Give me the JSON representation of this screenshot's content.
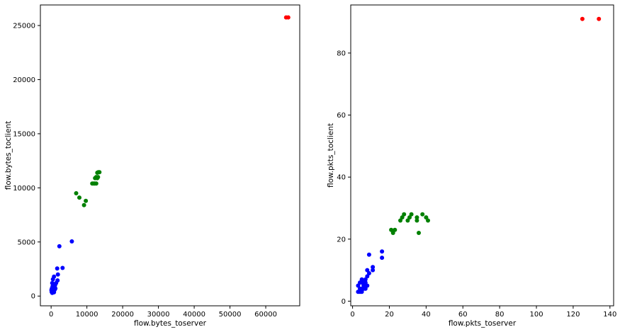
{
  "chart_data": [
    {
      "type": "scatter",
      "xlabel": "flow.bytes_toserver",
      "ylabel": "flow.bytes_toclient",
      "xlim": [
        -3000,
        69500
      ],
      "ylim": [
        -900,
        26900
      ],
      "xticks": [
        0,
        10000,
        20000,
        30000,
        40000,
        50000,
        60000
      ],
      "yticks": [
        0,
        5000,
        10000,
        15000,
        20000,
        25000
      ],
      "xtick_labels": [
        "0",
        "10000",
        "20000",
        "30000",
        "40000",
        "50000",
        "60000"
      ],
      "ytick_labels": [
        "0",
        "5000",
        "10000",
        "15000",
        "20000",
        "25000"
      ],
      "grid": false,
      "series": [
        {
          "color": "#0000ff",
          "points": [
            [
              2300,
              4600
            ],
            [
              5800,
              5050
            ],
            [
              3200,
              2600
            ],
            [
              1700,
              2550
            ],
            [
              1900,
              2000
            ],
            [
              1800,
              1450
            ],
            [
              1400,
              1200
            ],
            [
              800,
              1800
            ],
            [
              500,
              1550
            ],
            [
              1100,
              1000
            ],
            [
              300,
              1200
            ],
            [
              700,
              1100
            ],
            [
              400,
              900
            ],
            [
              900,
              800
            ],
            [
              200,
              700
            ],
            [
              600,
              650
            ],
            [
              1000,
              600
            ],
            [
              100,
              550
            ],
            [
              400,
              500
            ],
            [
              700,
              450
            ],
            [
              150,
              400
            ],
            [
              500,
              380
            ],
            [
              300,
              300
            ],
            [
              800,
              350
            ],
            [
              1200,
              700
            ]
          ]
        },
        {
          "color": "#008000",
          "points": [
            [
              7000,
              9500
            ],
            [
              7900,
              9100
            ],
            [
              9200,
              8400
            ],
            [
              9700,
              8800
            ],
            [
              11500,
              10400
            ],
            [
              11900,
              10400
            ],
            [
              12200,
              10400
            ],
            [
              12600,
              10400
            ],
            [
              12300,
              10900
            ],
            [
              12600,
              11000
            ],
            [
              12900,
              10900
            ],
            [
              13100,
              11000
            ],
            [
              12900,
              11400
            ],
            [
              13200,
              11450
            ],
            [
              13500,
              11450
            ]
          ]
        },
        {
          "color": "#ff0000",
          "points": [
            [
              65700,
              25750
            ],
            [
              66300,
              25750
            ]
          ]
        }
      ]
    },
    {
      "type": "scatter",
      "xlabel": "flow.pkts_toserver",
      "ylabel": "flow.pkts_toclient",
      "xlim": [
        -1,
        142
      ],
      "ylim": [
        -1.5,
        95.5
      ],
      "xticks": [
        0,
        20,
        40,
        60,
        80,
        100,
        120,
        140
      ],
      "yticks": [
        0,
        20,
        40,
        60,
        80
      ],
      "xtick_labels": [
        "0",
        "20",
        "40",
        "60",
        "80",
        "100",
        "120",
        "140"
      ],
      "ytick_labels": [
        "0",
        "20",
        "40",
        "60",
        "80"
      ],
      "grid": false,
      "series": [
        {
          "color": "#0000ff",
          "points": [
            [
              9,
              15
            ],
            [
              16,
              16
            ],
            [
              16,
              14
            ],
            [
              11,
              11
            ],
            [
              11,
              10
            ],
            [
              8,
              10
            ],
            [
              9,
              9
            ],
            [
              8,
              8
            ],
            [
              7,
              7
            ],
            [
              5,
              7
            ],
            [
              6,
              6
            ],
            [
              4,
              6
            ],
            [
              6,
              5
            ],
            [
              8,
              5
            ],
            [
              3,
              5
            ],
            [
              5,
              4
            ],
            [
              7,
              4
            ],
            [
              4,
              4
            ],
            [
              3,
              3
            ],
            [
              5,
              3
            ],
            [
              4,
              3
            ],
            [
              6,
              4
            ],
            [
              5,
              6
            ],
            [
              7,
              6
            ]
          ]
        },
        {
          "color": "#008000",
          "points": [
            [
              21,
              23
            ],
            [
              22,
              22
            ],
            [
              23,
              23
            ],
            [
              26,
              26
            ],
            [
              27,
              27
            ],
            [
              28,
              28
            ],
            [
              30,
              26
            ],
            [
              31,
              27
            ],
            [
              32,
              28
            ],
            [
              35,
              27
            ],
            [
              35,
              26
            ],
            [
              36,
              22
            ],
            [
              38,
              28
            ],
            [
              40,
              27
            ],
            [
              41,
              26
            ]
          ]
        },
        {
          "color": "#ff0000",
          "points": [
            [
              125,
              91
            ],
            [
              134,
              91
            ]
          ]
        }
      ]
    }
  ]
}
